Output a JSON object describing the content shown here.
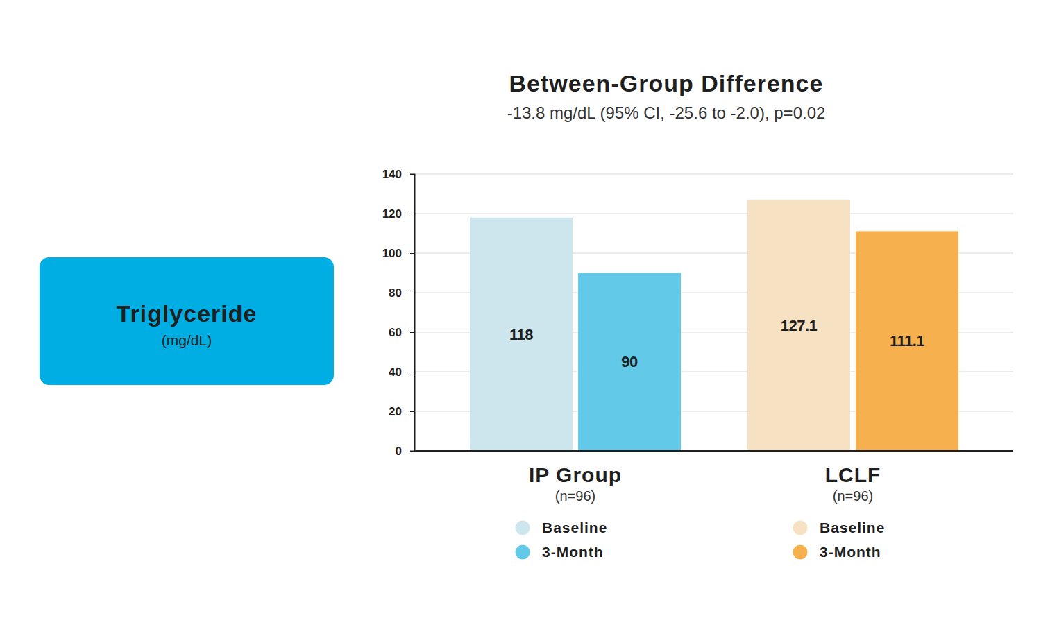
{
  "panel": {
    "label": "Triglyceride",
    "unit": "(mg/dL)"
  },
  "chart_data": {
    "type": "bar",
    "title": "Between-Group Difference",
    "subtitle": "-13.8 mg/dL (95% CI, -25.6 to -2.0), p=0.02",
    "categories": [
      "IP Group",
      "LCLF"
    ],
    "category_subtitles": [
      "(n=96)",
      "(n=96)"
    ],
    "series": [
      {
        "name": "Baseline",
        "values": [
          118,
          127.1
        ],
        "colors": [
          "#cde5ec",
          "#f7e1c3"
        ]
      },
      {
        "name": "3-Month",
        "values": [
          90,
          111.1
        ],
        "colors": [
          "#62c9e8",
          "#f7b04e"
        ]
      }
    ],
    "ylim": [
      0,
      140
    ],
    "yticks": [
      0,
      20,
      40,
      60,
      80,
      100,
      120,
      140
    ],
    "grid": true,
    "data_labels": true
  }
}
